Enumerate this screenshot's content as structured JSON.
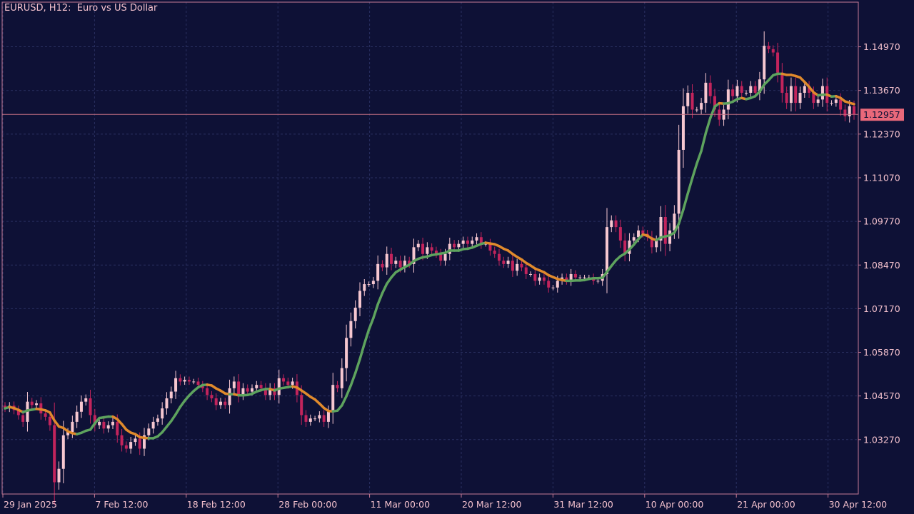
{
  "window": {
    "title": "EURUSD, H12:  Euro vs US Dollar"
  },
  "colors": {
    "background": "#0e1136",
    "frame": "#c77a95",
    "grid": "#2a3060",
    "text": "#f2c0cc",
    "bull_candle": "#f6c7d0",
    "bear_candle": "#c2245c",
    "ma_up": "#5ea35e",
    "ma_down": "#e08a2c",
    "price_line": "#c46f82",
    "price_label_bg": "#e9687a",
    "price_label_text": "#0e1136"
  },
  "chart_data": {
    "type": "candlestick",
    "symbol": "EURUSD",
    "timeframe": "H12",
    "description": "Euro vs US Dollar",
    "ylim": [
      1.0165,
      1.163
    ],
    "y_ticks": [
      "1.14970",
      "1.13670",
      "1.12370",
      "1.11070",
      "1.09770",
      "1.08470",
      "1.07170",
      "1.05870",
      "1.04570",
      "1.03270"
    ],
    "x_ticks": [
      "29 Jan 2025",
      "7 Feb 12:00",
      "18 Feb 12:00",
      "28 Feb 00:00",
      "11 Mar 00:00",
      "20 Mar 12:00",
      "31 Mar 12:00",
      "10 Apr 00:00",
      "21 Apr 00:00",
      "30 Apr 12:00"
    ],
    "current_price": "1.12957",
    "grid": true,
    "closes": [
      1.042,
      1.0428,
      1.0415,
      1.04,
      1.038,
      1.044,
      1.043,
      1.0435,
      1.0405,
      1.0395,
      1.037,
      1.02,
      1.024,
      1.034,
      1.035,
      1.038,
      1.041,
      1.044,
      1.045,
      1.04,
      1.037,
      1.038,
      1.036,
      1.037,
      1.038,
      1.034,
      1.031,
      1.03,
      1.032,
      1.033,
      1.03,
      1.034,
      1.036,
      1.038,
      1.039,
      1.042,
      1.045,
      1.047,
      1.051,
      1.05,
      1.0505,
      1.05,
      1.05,
      1.049,
      1.048,
      1.046,
      1.045,
      1.043,
      1.044,
      1.043,
      1.048,
      1.05,
      1.046,
      1.048,
      1.047,
      1.048,
      1.049,
      1.048,
      1.046,
      1.048,
      1.046,
      1.051,
      1.05,
      1.049,
      1.05,
      1.046,
      1.04,
      1.038,
      1.039,
      1.039,
      1.04,
      1.038,
      1.041,
      1.049,
      1.048,
      1.054,
      1.063,
      1.068,
      1.072,
      1.077,
      1.079,
      1.079,
      1.08,
      1.085,
      1.084,
      1.088,
      1.085,
      1.086,
      1.084,
      1.086,
      1.085,
      1.09,
      1.091,
      1.088,
      1.09,
      1.089,
      1.088,
      1.086,
      1.088,
      1.091,
      1.09,
      1.091,
      1.092,
      1.091,
      1.092,
      1.093,
      1.091,
      1.091,
      1.089,
      1.088,
      1.086,
      1.085,
      1.086,
      1.083,
      1.085,
      1.084,
      1.082,
      1.082,
      1.08,
      1.081,
      1.08,
      1.078,
      1.078,
      1.08,
      1.081,
      1.08,
      1.082,
      1.081,
      1.081,
      1.081,
      1.081,
      1.08,
      1.08,
      1.082,
      1.096,
      1.098,
      1.096,
      1.092,
      1.088,
      1.092,
      1.093,
      1.095,
      1.094,
      1.093,
      1.09,
      1.092,
      1.099,
      1.091,
      1.095,
      1.1,
      1.119,
      1.132,
      1.136,
      1.131,
      1.131,
      1.133,
      1.139,
      1.135,
      1.131,
      1.128,
      1.131,
      1.137,
      1.135,
      1.138,
      1.136,
      1.136,
      1.138,
      1.136,
      1.14,
      1.15,
      1.149,
      1.148,
      1.142,
      1.136,
      1.133,
      1.138,
      1.133,
      1.136,
      1.138,
      1.136,
      1.133,
      1.134,
      1.138,
      1.133,
      1.133,
      1.134,
      1.131,
      1.129,
      1.132,
      1.1296
    ],
    "series": [
      {
        "name": "Moving Average",
        "type": "line",
        "colors": [
          "#5ea35e",
          "#e08a2c"
        ]
      }
    ]
  }
}
